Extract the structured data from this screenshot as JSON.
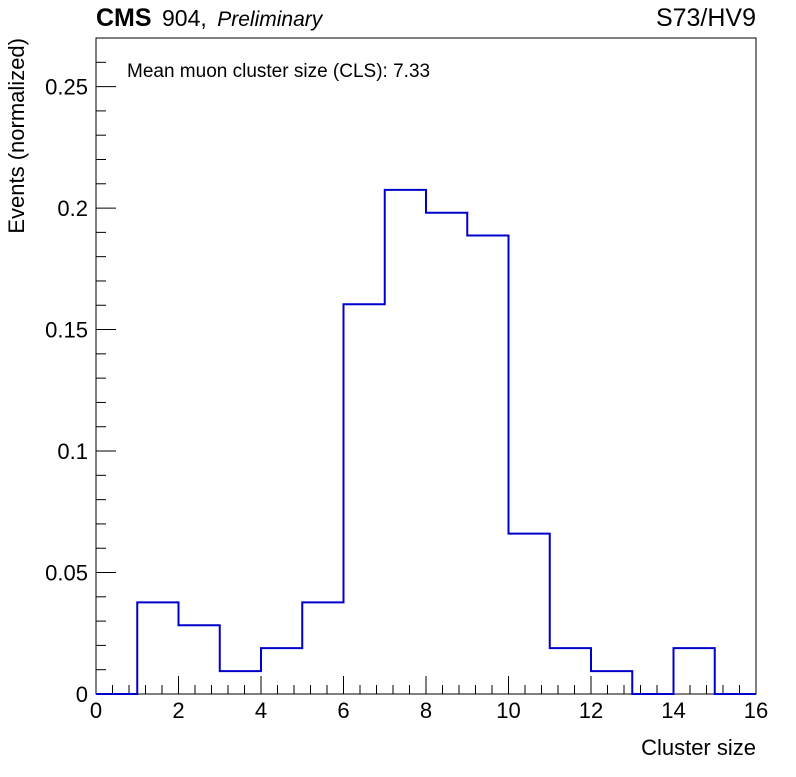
{
  "header": {
    "experiment": "CMS",
    "facility": "904,",
    "status": "Preliminary",
    "run_tag": "S73/HV9"
  },
  "annotation": "Mean muon cluster size (CLS): 7.33",
  "colors": {
    "histogram_line": "#0000cc",
    "axis": "#000000",
    "background": "#ffffff"
  },
  "chart_data": {
    "type": "bar",
    "style": "step-histogram",
    "title": "",
    "xlabel": "Cluster size",
    "ylabel": "Events (normalized)",
    "xlim": [
      0,
      16
    ],
    "ylim": [
      0,
      0.27
    ],
    "grid": false,
    "legend": "none",
    "x_major_ticks": [
      0,
      2,
      4,
      6,
      8,
      10,
      12,
      14,
      16
    ],
    "x_tick_labels": [
      "0",
      "2",
      "4",
      "6",
      "8",
      "10",
      "12",
      "14",
      "16"
    ],
    "y_major_ticks": [
      0,
      0.05,
      0.1,
      0.15,
      0.2,
      0.25
    ],
    "y_tick_labels": [
      "0",
      "0.05",
      "0.1",
      "0.15",
      "0.2",
      "0.25"
    ],
    "bin_edges": [
      0,
      1,
      2,
      3,
      4,
      5,
      6,
      7,
      8,
      9,
      10,
      11,
      12,
      13,
      14,
      15,
      16
    ],
    "values": [
      0.0,
      0.0377,
      0.0283,
      0.0094,
      0.0189,
      0.0377,
      0.1604,
      0.2075,
      0.1981,
      0.1887,
      0.066,
      0.0189,
      0.0094,
      0.0,
      0.0189,
      0.0
    ]
  }
}
